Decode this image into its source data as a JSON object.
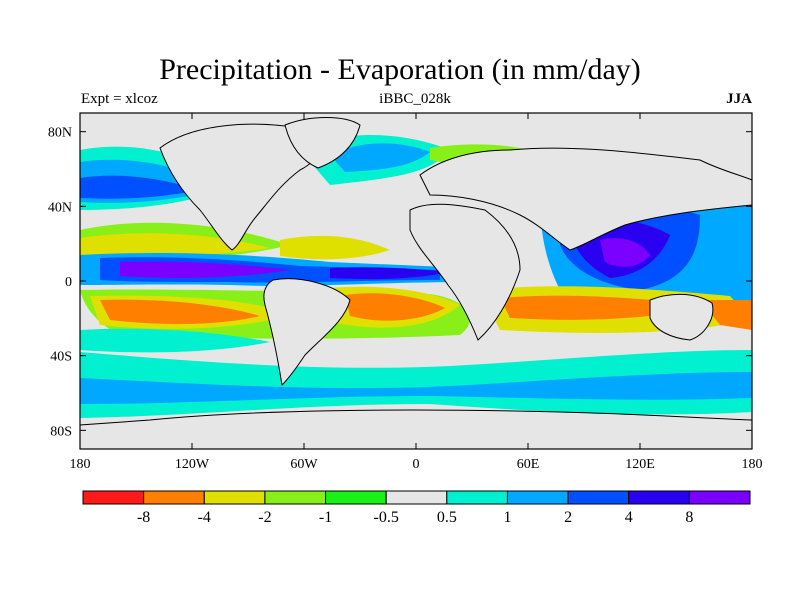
{
  "map": {
    "title": "Precipitation - Evaporation (in mm/day)",
    "subtitle_left": "Expt = xlcoz",
    "subtitle_center": "iBBC_028k",
    "subtitle_right": "JJA",
    "lon_ticks": [
      {
        "lon": -180,
        "label": "180"
      },
      {
        "lon": -120,
        "label": "120W"
      },
      {
        "lon": -60,
        "label": "60W"
      },
      {
        "lon": 0,
        "label": "0"
      },
      {
        "lon": 60,
        "label": "60E"
      },
      {
        "lon": 120,
        "label": "120E"
      },
      {
        "lon": 180,
        "label": "180"
      }
    ],
    "lat_ticks": [
      {
        "lat": 80,
        "label": "80N"
      },
      {
        "lat": 40,
        "label": "40N"
      },
      {
        "lat": 0,
        "label": "0"
      },
      {
        "lat": -40,
        "label": "40S"
      },
      {
        "lat": -80,
        "label": "80S"
      }
    ],
    "legend": {
      "colors": [
        "#ff1a1a",
        "#ff8000",
        "#e0e000",
        "#88f018",
        "#18f018",
        "#e6e6e6",
        "#00f0d0",
        "#00a8ff",
        "#0050ff",
        "#2a00f0",
        "#7a00ff"
      ],
      "labels": [
        "-8",
        "-4",
        "-2",
        "-1",
        "-0.5",
        "0.5",
        "1",
        "2",
        "4",
        "8"
      ]
    }
  }
}
